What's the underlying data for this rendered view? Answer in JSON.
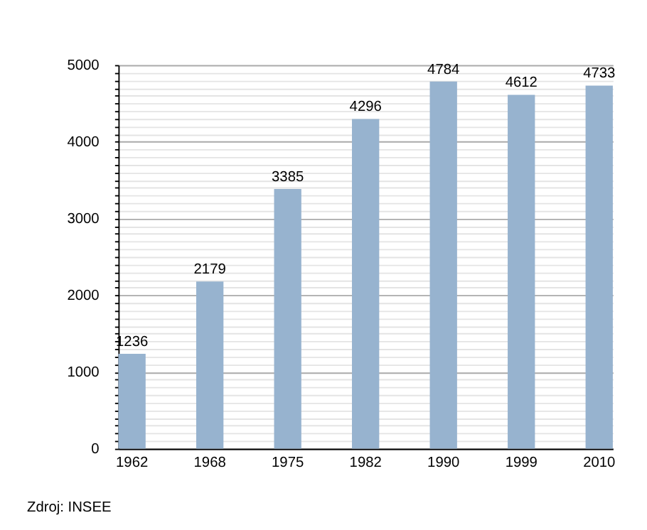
{
  "chart_data": {
    "type": "bar",
    "categories": [
      "1962",
      "1968",
      "1975",
      "1982",
      "1990",
      "1999",
      "2010"
    ],
    "values": [
      1236,
      2179,
      3385,
      4296,
      4784,
      4612,
      4733
    ],
    "color": "#97b3cf",
    "data_labels": true,
    "ylim": [
      0,
      5000
    ],
    "yticks": [
      0,
      {
        "value": 100,
        "label": null
      },
      {
        "value": 200,
        "label": null
      },
      {
        "value": 300,
        "label": null
      },
      {
        "value": 400,
        "label": null
      },
      {
        "value": 500,
        "label": null
      },
      {
        "value": 600,
        "label": null
      },
      {
        "value": 700,
        "label": null
      },
      {
        "value": 800,
        "label": null
      },
      {
        "value": 900,
        "label": null
      },
      1000,
      {
        "value": 1100,
        "label": null
      },
      {
        "value": 1200,
        "label": null
      },
      {
        "value": 1300,
        "label": null
      },
      {
        "value": 1400,
        "label": null
      },
      {
        "value": 1500,
        "label": null
      },
      {
        "value": 1600,
        "label": null
      },
      {
        "value": 1700,
        "label": null
      },
      {
        "value": 1800,
        "label": null
      },
      {
        "value": 1900,
        "label": null
      },
      2000,
      {
        "value": 2100,
        "label": null
      },
      {
        "value": 2200,
        "label": null
      },
      {
        "value": 2300,
        "label": null
      },
      {
        "value": 2400,
        "label": null
      },
      {
        "value": 2500,
        "label": null
      },
      {
        "value": 2600,
        "label": null
      },
      {
        "value": 2700,
        "label": null
      },
      {
        "value": 2800,
        "label": null
      },
      {
        "value": 2900,
        "label": null
      },
      3000,
      {
        "value": 3100,
        "label": null
      },
      {
        "value": 3200,
        "label": null
      },
      {
        "value": 3300,
        "label": null
      },
      {
        "value": 3400,
        "label": null
      },
      {
        "value": 3500,
        "label": null
      },
      {
        "value": 3600,
        "label": null
      },
      {
        "value": 3700,
        "label": null
      },
      {
        "value": 3800,
        "label": null
      },
      {
        "value": 3900,
        "label": null
      },
      4000,
      {
        "value": 4100,
        "label": null
      },
      {
        "value": 4200,
        "label": null
      },
      {
        "value": 4300,
        "label": null
      },
      {
        "value": 4400,
        "label": null
      },
      {
        "value": 4500,
        "label": null
      },
      {
        "value": 4600,
        "label": null
      },
      {
        "value": 4700,
        "label": null
      },
      {
        "value": 4800,
        "label": null
      },
      {
        "value": 4900,
        "label": null
      },
      5000
    ],
    "grid": "y",
    "annotations": [
      "Zdroj: INSEE"
    ]
  }
}
